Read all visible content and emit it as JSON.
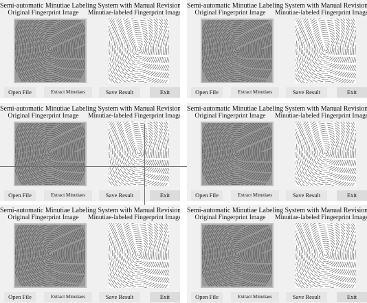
{
  "panels": [
    {
      "title": "Semi-automatic Minutiae Labeling System with Manual Revisions",
      "original_label": "Original Fingerprint Image",
      "labeled_label": "Minutiae-labeled Fingerprint Image",
      "buttons": [
        "Open File",
        "Extract Minutiaes",
        "Save Result",
        "Exit"
      ]
    },
    {
      "title": "Semi-automatic Minutiae Labeling System with Manual Revisions",
      "original_label": "Original Fingerprint Image",
      "labeled_label": "Minutiae-labeled Fingerprint Image",
      "buttons": [
        "Open File",
        "Extract Minutiaes",
        "Save Result",
        "Exit"
      ]
    },
    {
      "title": "Semi-automatic Minutiae Labeling System with Manual Revisions",
      "original_label": "Original Fingerprint Image",
      "labeled_label": "Minutiae-labeled Fingerprint Image",
      "buttons": [
        "Open File",
        "Extract Minutiaes",
        "Save Result",
        "Exit"
      ]
    },
    {
      "title": "Semi-automatic Minutiae Labeling System with Manual Revisions",
      "original_label": "Original Fingerprint Image",
      "labeled_label": "Minutiae-labeled Fingerprint Image",
      "buttons": [
        "Open File",
        "Extract Minutiaes",
        "Save Result",
        "Exit"
      ]
    },
    {
      "title": "Semi-automatic Minutiae Labeling System with Manual Revisions",
      "original_label": "Original Fingerprint Image",
      "labeled_label": "Minutiae-labeled Fingerprint Image",
      "buttons": [
        "Open File",
        "Extract Minutiaes",
        "Save Result",
        "Exit"
      ]
    },
    {
      "title": "Semi-automatic Minutiae Labeling System with Manual Revisions",
      "original_label": "Original Fingerprint Image",
      "labeled_label": "Minutiae-labeled Fingerprint Image",
      "buttons": [
        "Open File",
        "Extract Minutiaes",
        "Save Result",
        "Exit"
      ]
    }
  ]
}
